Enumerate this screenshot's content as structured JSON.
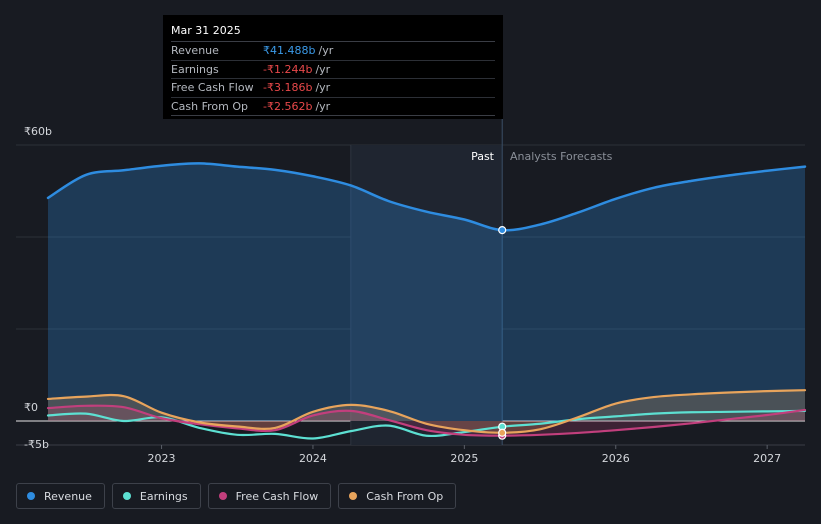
{
  "tooltip": {
    "date": "Mar 31 2025",
    "rows": [
      {
        "label": "Revenue",
        "value": "₹41.488b",
        "unit": "/yr",
        "color": "#3b9ae8"
      },
      {
        "label": "Earnings",
        "value": "-₹1.244b",
        "unit": "/yr",
        "color": "#e8484a"
      },
      {
        "label": "Free Cash Flow",
        "value": "-₹3.186b",
        "unit": "/yr",
        "color": "#e8484a"
      },
      {
        "label": "Cash From Op",
        "value": "-₹2.562b",
        "unit": "/yr",
        "color": "#e8484a"
      }
    ]
  },
  "labels": {
    "past": "Past",
    "forecast": "Analysts Forecasts"
  },
  "chart_data": {
    "type": "line",
    "ylim": [
      -5,
      60
    ],
    "xlim": [
      2022.25,
      2027.25
    ],
    "y_tick_labels": [
      {
        "value": 60,
        "label": "₹60b"
      },
      {
        "value": 0,
        "label": "₹0"
      },
      {
        "value": -5,
        "label": "-₹5b"
      }
    ],
    "x_ticks": [
      {
        "value": 2023,
        "label": "2023"
      },
      {
        "value": 2024,
        "label": "2024"
      },
      {
        "value": 2025,
        "label": "2025"
      },
      {
        "value": 2026,
        "label": "2026"
      },
      {
        "value": 2027,
        "label": "2027"
      }
    ],
    "past_shading_start": 2024.25,
    "cursor_x": 2025.25,
    "series": [
      {
        "name": "Revenue",
        "color": "#2e8ce0",
        "fill": true,
        "points": [
          [
            2022.25,
            48.5
          ],
          [
            2022.5,
            53.5
          ],
          [
            2022.75,
            54.5
          ],
          [
            2023.0,
            55.5
          ],
          [
            2023.25,
            56.0
          ],
          [
            2023.5,
            55.3
          ],
          [
            2023.75,
            54.6
          ],
          [
            2024.0,
            53.2
          ],
          [
            2024.25,
            51.2
          ],
          [
            2024.5,
            47.8
          ],
          [
            2024.75,
            45.5
          ],
          [
            2025.0,
            43.8
          ],
          [
            2025.25,
            41.5
          ],
          [
            2025.5,
            42.7
          ],
          [
            2025.75,
            45.3
          ],
          [
            2026.0,
            48.3
          ],
          [
            2026.25,
            50.7
          ],
          [
            2026.5,
            52.2
          ],
          [
            2026.75,
            53.4
          ],
          [
            2027.0,
            54.4
          ],
          [
            2027.25,
            55.3
          ]
        ]
      },
      {
        "name": "Earnings",
        "color": "#5de0d2",
        "fill": false,
        "points": [
          [
            2022.25,
            1.2
          ],
          [
            2022.5,
            1.6
          ],
          [
            2022.75,
            0.0
          ],
          [
            2023.0,
            0.8
          ],
          [
            2023.25,
            -1.5
          ],
          [
            2023.5,
            -3.0
          ],
          [
            2023.75,
            -2.8
          ],
          [
            2024.0,
            -3.8
          ],
          [
            2024.25,
            -2.2
          ],
          [
            2024.5,
            -1.0
          ],
          [
            2024.75,
            -3.2
          ],
          [
            2025.0,
            -2.4
          ],
          [
            2025.25,
            -1.24
          ],
          [
            2025.5,
            -0.6
          ],
          [
            2025.75,
            0.4
          ],
          [
            2026.0,
            1.0
          ],
          [
            2026.25,
            1.6
          ],
          [
            2026.5,
            1.9
          ],
          [
            2026.75,
            2.0
          ],
          [
            2027.0,
            2.1
          ],
          [
            2027.25,
            2.2
          ]
        ]
      },
      {
        "name": "Free Cash Flow",
        "color": "#c23f7d",
        "fill": true,
        "points": [
          [
            2022.25,
            2.8
          ],
          [
            2022.5,
            3.3
          ],
          [
            2022.75,
            3.0
          ],
          [
            2023.0,
            0.6
          ],
          [
            2023.25,
            -0.7
          ],
          [
            2023.5,
            -1.6
          ],
          [
            2023.75,
            -2.0
          ],
          [
            2024.0,
            1.2
          ],
          [
            2024.25,
            2.2
          ],
          [
            2024.5,
            0.2
          ],
          [
            2024.75,
            -2.0
          ],
          [
            2025.0,
            -3.0
          ],
          [
            2025.25,
            -3.19
          ],
          [
            2025.5,
            -3.0
          ],
          [
            2025.75,
            -2.6
          ],
          [
            2026.0,
            -2.0
          ],
          [
            2026.25,
            -1.3
          ],
          [
            2026.5,
            -0.5
          ],
          [
            2026.75,
            0.4
          ],
          [
            2027.0,
            1.3
          ],
          [
            2027.25,
            2.4
          ]
        ]
      },
      {
        "name": "Cash From Op",
        "color": "#e8a45c",
        "fill": true,
        "points": [
          [
            2022.25,
            4.8
          ],
          [
            2022.5,
            5.3
          ],
          [
            2022.75,
            5.4
          ],
          [
            2023.0,
            1.8
          ],
          [
            2023.25,
            -0.3
          ],
          [
            2023.5,
            -1.2
          ],
          [
            2023.75,
            -1.5
          ],
          [
            2024.0,
            2.0
          ],
          [
            2024.25,
            3.5
          ],
          [
            2024.5,
            2.2
          ],
          [
            2024.75,
            -0.6
          ],
          [
            2025.0,
            -2.0
          ],
          [
            2025.25,
            -2.56
          ],
          [
            2025.5,
            -1.8
          ],
          [
            2025.75,
            0.8
          ],
          [
            2026.0,
            3.8
          ],
          [
            2026.25,
            5.2
          ],
          [
            2026.5,
            5.8
          ],
          [
            2026.75,
            6.2
          ],
          [
            2027.0,
            6.5
          ],
          [
            2027.25,
            6.7
          ]
        ]
      }
    ]
  },
  "legend": [
    {
      "name": "Revenue",
      "color": "#2e8ce0"
    },
    {
      "name": "Earnings",
      "color": "#5de0d2"
    },
    {
      "name": "Free Cash Flow",
      "color": "#c23f7d"
    },
    {
      "name": "Cash From Op",
      "color": "#e8a45c"
    }
  ]
}
